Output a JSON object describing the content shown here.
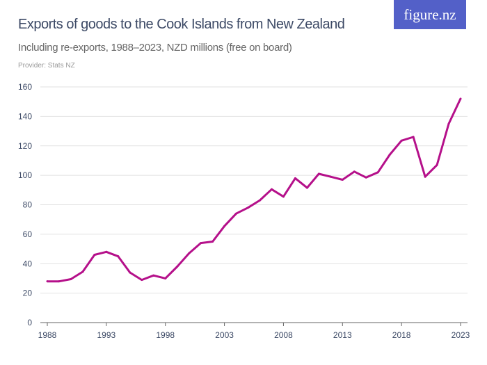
{
  "header": {
    "title": "Exports of goods to the Cook Islands from New Zealand",
    "subtitle": "Including re-exports, 1988–2023, NZD millions (free on board)",
    "provider": "Provider: Stats NZ",
    "logo": "figure.nz"
  },
  "colors": {
    "line": "#b5108a",
    "grid": "#e2e2e2",
    "axis": "#666666",
    "logo_bg": "#5360c8"
  },
  "chart_data": {
    "type": "line",
    "title": "Exports of goods to the Cook Islands from New Zealand",
    "xlabel": "",
    "ylabel": "",
    "xlim": [
      1988,
      2023
    ],
    "ylim": [
      0,
      160
    ],
    "grid": true,
    "x_ticks": [
      1988,
      1993,
      1998,
      2003,
      2008,
      2013,
      2018,
      2023
    ],
    "y_ticks": [
      0,
      20,
      40,
      60,
      80,
      100,
      120,
      140,
      160
    ],
    "x": [
      1988,
      1989,
      1990,
      1991,
      1992,
      1993,
      1994,
      1995,
      1996,
      1997,
      1998,
      1999,
      2000,
      2001,
      2002,
      2003,
      2004,
      2005,
      2006,
      2007,
      2008,
      2009,
      2010,
      2011,
      2012,
      2013,
      2014,
      2015,
      2016,
      2017,
      2018,
      2019,
      2020,
      2021,
      2022,
      2023
    ],
    "values": [
      28,
      28,
      29.5,
      34.5,
      46,
      48,
      45,
      34,
      29,
      32,
      30,
      38,
      47,
      54,
      55,
      65.5,
      74,
      78,
      83,
      90.5,
      85.5,
      98,
      91.5,
      101,
      99,
      97,
      102.5,
      98.5,
      102,
      114,
      123.5,
      126,
      99,
      107,
      135,
      152
    ]
  }
}
